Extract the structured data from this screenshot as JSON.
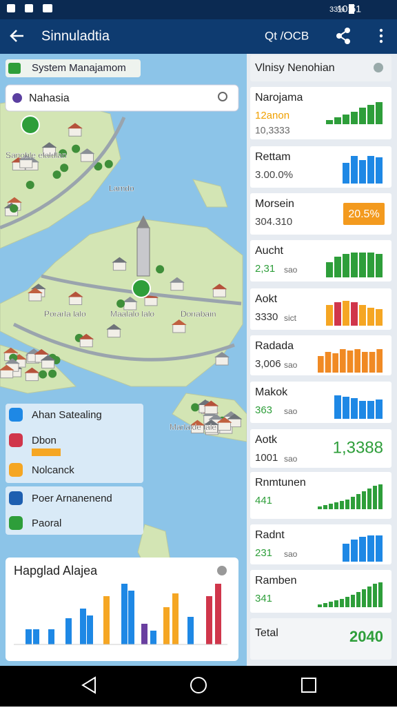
{
  "status_bar": {
    "time": "10:51",
    "battery": "33%"
  },
  "app_bar": {
    "title": "Sinnuladtia",
    "action": "Qt /OCB"
  },
  "map": {
    "chip": "System Manajamom",
    "search": "Nahasia",
    "labels": [
      "Sanoble elaldlan",
      "Lamdo",
      "Porarla lalo",
      "Maalalo lalo",
      "Donabain",
      "Marlalde lale"
    ]
  },
  "layers": [
    "Ahan Satealing",
    "Dbon",
    "Nolcanck",
    "Poer Arnanenend",
    "Paoral"
  ],
  "chart": {
    "title": "Hapglad Alajea",
    "ylim": [
      0,
      100
    ],
    "values": [
      22,
      22,
      22,
      38,
      52,
      42,
      70,
      88,
      78,
      30,
      20,
      54,
      74,
      40,
      70,
      88
    ],
    "colors": [
      "#1e88e5",
      "#1e88e5",
      "#1e88e5",
      "#1e88e5",
      "#1e88e5",
      "#1e88e5",
      "#f5a623",
      "#1e88e5",
      "#1e88e5",
      "#6a3fa0",
      "#1e88e5",
      "#f5a623",
      "#f5a623",
      "#1e88e5",
      "#d0364b",
      "#d0364b"
    ]
  },
  "panel": {
    "title": "Vlnisy Nenohian",
    "ylim": [
      0,
      40
    ],
    "cards": [
      {
        "title": "Narojama",
        "value": "12anon",
        "value_color": "#f0a000",
        "sub": "10,3333",
        "color": "#2e9e3a",
        "bars": [
          6,
          10,
          14,
          18,
          24,
          28,
          32
        ]
      },
      {
        "title": "Rettam",
        "value": "3.00.0%",
        "value_color": "#444444",
        "color": "#1e88e5",
        "bars": [
          30,
          40,
          34,
          40,
          38
        ]
      },
      {
        "title": "Morsein",
        "value": "304.310",
        "value_color": "#444444",
        "badge": "20.5%"
      },
      {
        "title": "Aucht",
        "value": "2,31",
        "value_color": "#2e9e3a",
        "sub": "sao",
        "color": "#2e9e3a",
        "bars": [
          22,
          30,
          34,
          36,
          36,
          36,
          34
        ]
      },
      {
        "title": "Aokt",
        "value": "3330",
        "value_color": "#333333",
        "sub": "sict",
        "colors": [
          "#f5a623",
          "#d0364b",
          "#f5a623",
          "#d0364b",
          "#f5a623",
          "#f5a623",
          "#f5a623"
        ],
        "bars": [
          30,
          34,
          36,
          34,
          30,
          26,
          24
        ]
      },
      {
        "title": "Radada",
        "value": "3,006",
        "value_color": "#333333",
        "sub": "sao",
        "color": "#f08a24",
        "bars": [
          24,
          30,
          28,
          34,
          32,
          34,
          30,
          30,
          34
        ]
      },
      {
        "title": "Makok",
        "value": "363",
        "value_color": "#2e9e3a",
        "sub": "sao",
        "color": "#1e88e5",
        "bars": [
          34,
          32,
          30,
          26,
          26,
          28
        ]
      },
      {
        "title": "Aotk",
        "value": "1001",
        "value_color": "#333333",
        "sub": "sao",
        "big": "1,3388"
      },
      {
        "title": "Rnmtunen",
        "value": "441",
        "value_color": "#2e9e3a",
        "color": "#2e9e3a",
        "bars": [
          4,
          6,
          8,
          10,
          12,
          14,
          18,
          22,
          26,
          30,
          34,
          36
        ]
      },
      {
        "title": "Radnt",
        "value": "231",
        "value_color": "#2e9e3a",
        "sub": "sao",
        "color": "#1e88e5",
        "bars": [
          26,
          32,
          36,
          38,
          38
        ]
      },
      {
        "title": "Ramben",
        "value": "341",
        "value_color": "#2e9e3a",
        "color": "#2e9e3a",
        "bars": [
          4,
          6,
          8,
          10,
          12,
          15,
          18,
          22,
          26,
          30,
          34,
          36
        ]
      }
    ],
    "total": {
      "label": "Tetal",
      "value": "2040"
    }
  }
}
